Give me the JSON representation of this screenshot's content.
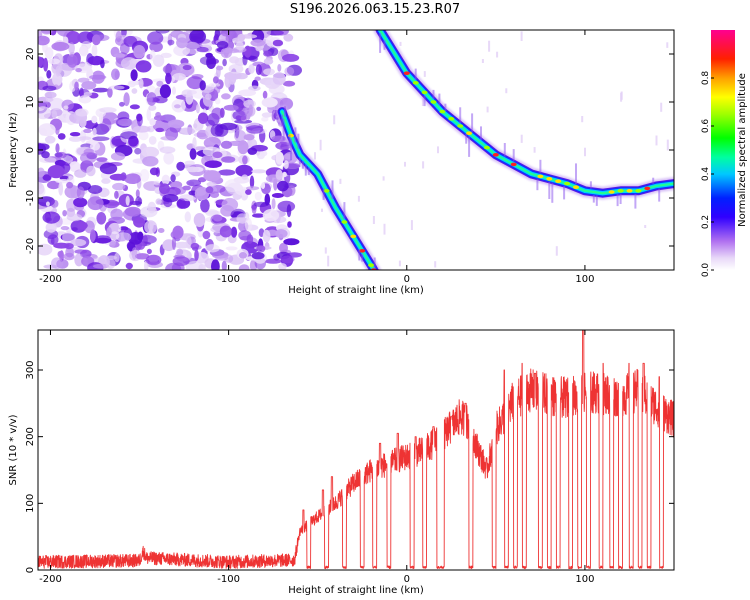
{
  "title": "S196.2026.063.15.23.R07",
  "chart_data": [
    {
      "type": "heatmap",
      "xlabel": "Height of straight line (km)",
      "ylabel": "Frequency (Hz)",
      "xlim": [
        -207,
        150
      ],
      "ylim": [
        -25,
        25
      ],
      "xticks": [
        -200,
        -100,
        0,
        100
      ],
      "yticks": [
        -20,
        -10,
        0,
        10,
        20
      ],
      "noise_region_x": [
        -207,
        -63
      ],
      "trails": [
        {
          "name": "descending trail",
          "points": [
            [
              -70,
              8
            ],
            [
              -65,
              3
            ],
            [
              -60,
              -1
            ],
            [
              -50,
              -5
            ],
            [
              -40,
              -12
            ],
            [
              -30,
              -18
            ],
            [
              -20,
              -24
            ],
            [
              -17,
              -26
            ]
          ]
        },
        {
          "name": "curved trail",
          "points": [
            [
              -15,
              25
            ],
            [
              0,
              16
            ],
            [
              10,
              12
            ],
            [
              20,
              8
            ],
            [
              30,
              5
            ],
            [
              40,
              2
            ],
            [
              50,
              -1
            ],
            [
              60,
              -3
            ],
            [
              70,
              -5
            ],
            [
              80,
              -6
            ],
            [
              90,
              -7
            ],
            [
              100,
              -8.5
            ],
            [
              110,
              -9
            ],
            [
              120,
              -8.5
            ],
            [
              130,
              -8.5
            ],
            [
              140,
              -7.5
            ],
            [
              150,
              -7
            ]
          ]
        }
      ],
      "colorbar": {
        "label": "Normalized spectral amplitude",
        "ticks": [
          "0.0",
          "0.2",
          "0.4",
          "0.6",
          "0.8"
        ],
        "range": [
          0,
          1
        ]
      }
    },
    {
      "type": "line",
      "xlabel": "Height of straight line (km)",
      "ylabel": "SNR (10 * v/v)",
      "xlim": [
        -207,
        150
      ],
      "ylim": [
        0,
        360
      ],
      "xticks": [
        -200,
        -100,
        0,
        100
      ],
      "yticks": [
        0,
        100,
        200,
        300
      ],
      "color": "#ee3333",
      "envelope": [
        [
          -207,
          12
        ],
        [
          -150,
          14
        ],
        [
          -148,
          28
        ],
        [
          -146,
          18
        ],
        [
          -100,
          12
        ],
        [
          -63,
          15
        ],
        [
          -60,
          58
        ],
        [
          -50,
          80
        ],
        [
          -40,
          100
        ],
        [
          -30,
          130
        ],
        [
          -20,
          150
        ],
        [
          -10,
          160
        ],
        [
          0,
          170
        ],
        [
          10,
          180
        ],
        [
          20,
          200
        ],
        [
          30,
          230
        ],
        [
          35,
          220
        ],
        [
          40,
          180
        ],
        [
          45,
          150
        ],
        [
          50,
          210
        ],
        [
          60,
          255
        ],
        [
          70,
          270
        ],
        [
          80,
          262
        ],
        [
          90,
          258
        ],
        [
          100,
          268
        ],
        [
          110,
          265
        ],
        [
          120,
          260
        ],
        [
          130,
          270
        ],
        [
          140,
          245
        ],
        [
          150,
          225
        ]
      ],
      "spikes": [
        [
          -58,
          90
        ],
        [
          -55,
          100
        ],
        [
          -47,
          120
        ],
        [
          -42,
          140
        ],
        [
          -35,
          165
        ],
        [
          -25,
          185
        ],
        [
          -15,
          190
        ],
        [
          -5,
          205
        ],
        [
          5,
          200
        ],
        [
          15,
          215
        ],
        [
          25,
          230
        ],
        [
          33,
          250
        ],
        [
          55,
          300
        ],
        [
          65,
          310
        ],
        [
          72,
          295
        ],
        [
          85,
          305
        ],
        [
          92,
          310
        ],
        [
          99,
          360
        ],
        [
          110,
          310
        ],
        [
          125,
          310
        ],
        [
          133,
          310
        ],
        [
          142,
          290
        ]
      ],
      "dropouts": [
        -55,
        -45,
        -35,
        -25,
        -18,
        -10,
        3,
        10,
        18,
        20,
        36,
        49,
        56,
        61,
        66,
        75,
        80,
        85,
        92,
        97,
        102,
        109,
        115,
        120,
        126,
        131,
        136,
        143
      ]
    }
  ]
}
